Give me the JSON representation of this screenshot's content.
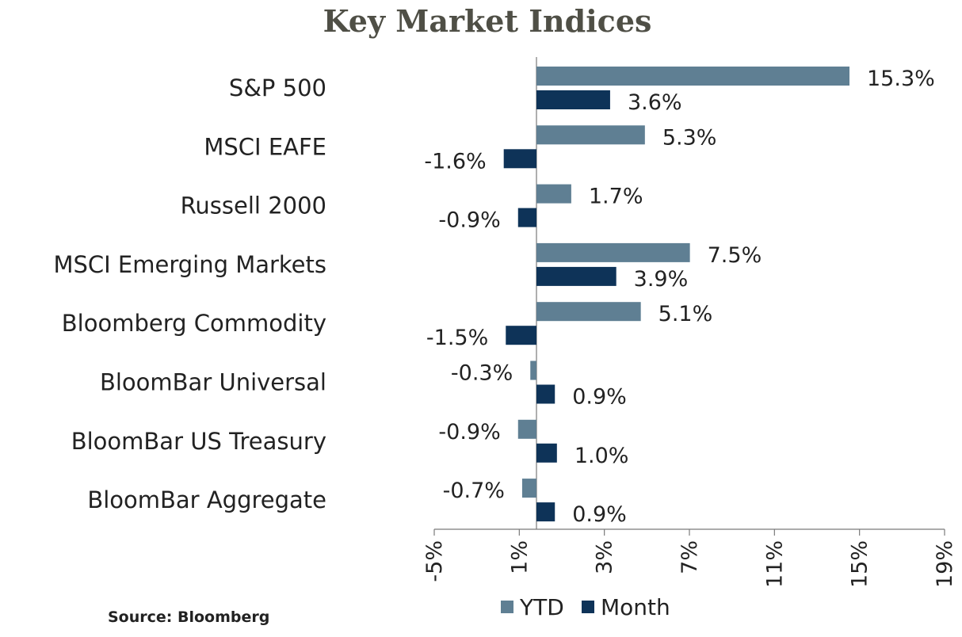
{
  "title": "Key Market Indices",
  "source": "Source: Bloomberg",
  "chart_data": {
    "type": "bar",
    "orientation": "horizontal",
    "title": "Key Market Indices",
    "categories": [
      "S&P 500",
      "MSCI EAFE",
      "Russell 2000",
      "MSCI Emerging Markets",
      "Bloomberg Commodity",
      "BloomBar Universal",
      "BloomBar US Treasury",
      "BloomBar Aggregate"
    ],
    "series": [
      {
        "name": "YTD",
        "color": "#5f7f93",
        "values": [
          15.3,
          5.3,
          1.7,
          7.5,
          5.1,
          -0.3,
          -0.9,
          -0.7
        ]
      },
      {
        "name": "Month",
        "color": "#0e3358",
        "values": [
          3.6,
          -1.6,
          -0.9,
          3.9,
          -1.5,
          0.9,
          1.0,
          0.9
        ]
      }
    ],
    "value_suffix": "%",
    "xlim": [
      -5,
      20
    ],
    "x_ticks": [
      "-5%",
      "1%",
      "3%",
      "7%",
      "11%",
      "15%",
      "19%"
    ],
    "legend_position": "bottom",
    "grid": false
  }
}
